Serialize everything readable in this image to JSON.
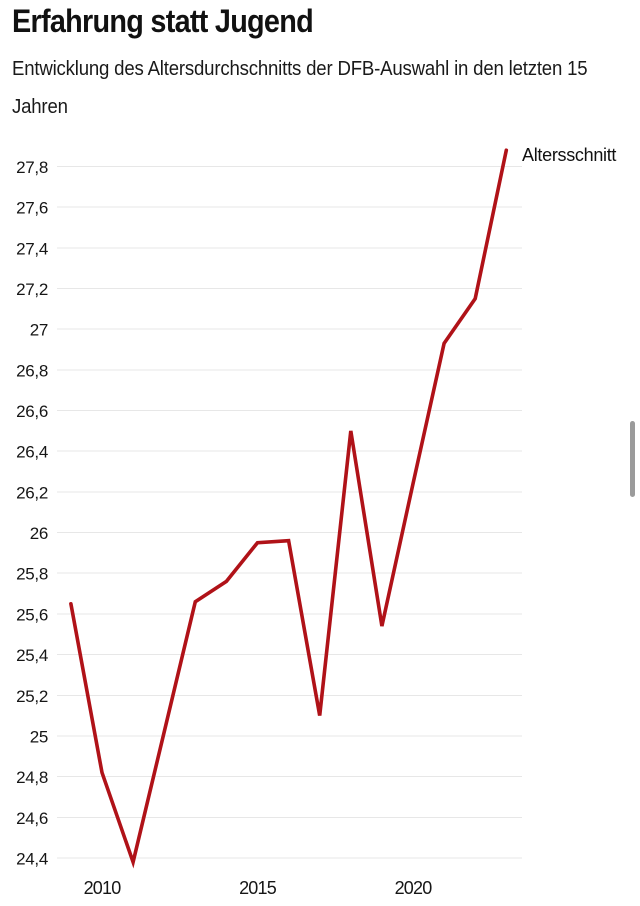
{
  "header": {
    "title": "Erfahrung statt Jugend",
    "subtitle_line1": "Entwicklung des Altersdurchschnitts der DFB-Auswahl in den letzten 15",
    "subtitle_line2": "Jahren"
  },
  "chart_data": {
    "type": "line",
    "title": "Erfahrung statt Jugend",
    "subtitle": "Entwicklung des Altersdurchschnitts der DFB-Auswahl in den letzten 15 Jahren",
    "x": [
      2009,
      2010,
      2011,
      2012,
      2013,
      2014,
      2015,
      2016,
      2017,
      2018,
      2019,
      2020,
      2021,
      2022,
      2023
    ],
    "series": [
      {
        "name": "Altersschnitt",
        "values": [
          25.65,
          24.82,
          24.38,
          25.02,
          25.66,
          25.76,
          25.95,
          25.96,
          25.1,
          26.5,
          25.54,
          26.24,
          26.93,
          27.15,
          27.88
        ]
      }
    ],
    "xlabel": "",
    "ylabel": "",
    "xlim": [
      2008.8,
      2023.5
    ],
    "ylim": [
      24.3,
      27.95
    ],
    "grid": true,
    "legend_position": "top-right",
    "decimal_separator": ",",
    "yticks": [
      {
        "value": 27.8,
        "label": "27,8"
      },
      {
        "value": 27.6,
        "label": "27,6"
      },
      {
        "value": 27.4,
        "label": "27,4"
      },
      {
        "value": 27.2,
        "label": "27,2"
      },
      {
        "value": 27.0,
        "label": "27"
      },
      {
        "value": 26.8,
        "label": "26,8"
      },
      {
        "value": 26.6,
        "label": "26,6"
      },
      {
        "value": 26.4,
        "label": "26,4"
      },
      {
        "value": 26.2,
        "label": "26,2"
      },
      {
        "value": 26.0,
        "label": "26"
      },
      {
        "value": 25.8,
        "label": "25,8"
      },
      {
        "value": 25.6,
        "label": "25,6"
      },
      {
        "value": 25.4,
        "label": "25,4"
      },
      {
        "value": 25.2,
        "label": "25,2"
      },
      {
        "value": 25.0,
        "label": "25"
      },
      {
        "value": 24.8,
        "label": "24,8"
      },
      {
        "value": 24.6,
        "label": "24,6"
      },
      {
        "value": 24.4,
        "label": "24,4"
      }
    ],
    "xticks": [
      {
        "value": 2010,
        "label": "2010"
      },
      {
        "value": 2015,
        "label": "2015"
      },
      {
        "value": 2020,
        "label": "2020"
      }
    ],
    "colors": {
      "line": "#b01218",
      "grid": "#e7e7e7",
      "text": "#161616"
    }
  }
}
